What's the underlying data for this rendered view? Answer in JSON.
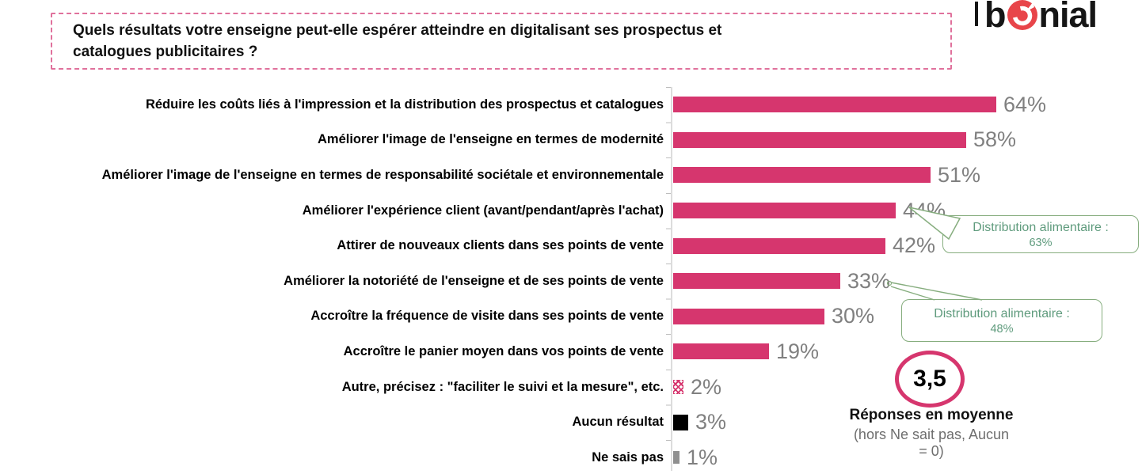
{
  "logo": {
    "part1": "b",
    "part2": "nial",
    "o_icon": "bonial-target-icon"
  },
  "question": {
    "line1": "Quels résultats votre enseigne peut-elle espérer atteindre en digitalisant ses prospectus et",
    "line2": "catalogues publicitaires ?"
  },
  "chart_data": {
    "type": "bar",
    "orientation": "horizontal",
    "title": "Quels résultats votre enseigne peut-elle espérer atteindre en digitalisant ses prospectus et catalogues publicitaires ?",
    "unit": "%",
    "xlim": [
      0,
      70
    ],
    "grid": false,
    "categories": [
      "Réduire les coûts liés à l'impression et la distribution des prospectus et catalogues",
      "Améliorer l'image de l'enseigne en termes de modernité",
      "Améliorer l'image de l'enseigne en termes de responsabilité sociétale et environnementale",
      "Améliorer l'expérience client (avant/pendant/après l'achat)",
      "Attirer de nouveaux clients dans ses points de vente",
      "Améliorer la notoriété de l'enseigne et de ses points de vente",
      "Accroître la fréquence de visite dans ses points de vente",
      "Accroître le panier moyen dans vos points de vente",
      "Autre, précisez : \"faciliter le suivi et la mesure\", etc.",
      "Aucun résultat",
      "Ne sais pas"
    ],
    "values": [
      64,
      58,
      51,
      44,
      42,
      33,
      30,
      19,
      2,
      3,
      1
    ],
    "value_labels": [
      "64%",
      "58%",
      "51%",
      "44%",
      "42%",
      "33%",
      "30%",
      "19%",
      "2%",
      "3%",
      "1%"
    ],
    "bar_styles": [
      "pink",
      "pink",
      "pink",
      "pink",
      "pink",
      "pink",
      "pink",
      "pink",
      "hatched",
      "black",
      "gray"
    ],
    "colors": {
      "bar_pink": "#d6366e",
      "bar_black": "#000000",
      "bar_gray": "#8f8f8f",
      "value_text": "#808080",
      "callout_border": "#86ad7e",
      "callout_text": "#5f9b7d",
      "question_border": "#e0719c",
      "logo_red": "#e8454a"
    },
    "annotations": [
      {
        "line1": "Distribution alimentaire :",
        "line2": "63%",
        "linked_value": "44%"
      },
      {
        "line1": "Distribution alimentaire :",
        "line2": "48%",
        "linked_value": "33%"
      }
    ],
    "average": {
      "value": "3,5",
      "label": "Réponses en moyenne",
      "note_line1": "(hors Ne sait pas, Aucun",
      "note_line2": "= 0)"
    }
  }
}
